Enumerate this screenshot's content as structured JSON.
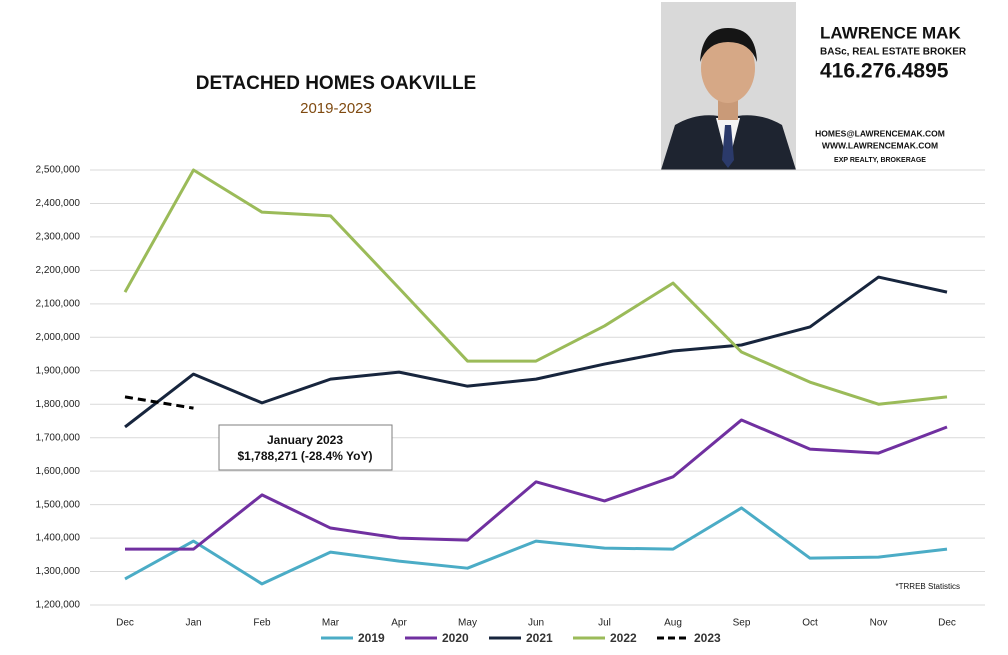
{
  "header": {
    "name": "LAWRENCE MAK",
    "credentials": "BASc, REAL ESTATE BROKER",
    "phone": "416.276.4895",
    "email": "HOMES@LAWRENCEMAK.COM",
    "website": "WWW.LAWRENCEMAK.COM",
    "brokerage": "EXP REALTY, BROKERAGE"
  },
  "chart_data": {
    "type": "line",
    "title": "DETACHED HOMES OAKVILLE",
    "subtitle": "2019-2023",
    "categories": [
      "Dec",
      "Jan",
      "Feb",
      "Mar",
      "Apr",
      "May",
      "Jun",
      "Jul",
      "Aug",
      "Sep",
      "Oct",
      "Nov",
      "Dec"
    ],
    "series": [
      {
        "name": "2019",
        "color": "#4bacc6",
        "values": [
          1278000,
          1391000,
          1263000,
          1358000,
          1331000,
          1310000,
          1391000,
          1370000,
          1367000,
          1490000,
          1340000,
          1343000,
          1367000
        ]
      },
      {
        "name": "2020",
        "color": "#7030a0",
        "values": [
          1367000,
          1367000,
          1529000,
          1430000,
          1400000,
          1394000,
          1568000,
          1511000,
          1583000,
          1753000,
          1666000,
          1654000,
          1732000
        ]
      },
      {
        "name": "2021",
        "color": "#17253d",
        "values": [
          1732000,
          1890000,
          1804000,
          1875000,
          1896000,
          1854000,
          1875000,
          1920000,
          1959000,
          1977000,
          2031000,
          2180000,
          2135000
        ]
      },
      {
        "name": "2022",
        "color": "#9bbb59",
        "values": [
          2135000,
          2500000,
          2374000,
          2363000,
          2147000,
          1929000,
          1929000,
          2034000,
          2162000,
          1956000,
          1866000,
          1800000,
          1822000
        ]
      },
      {
        "name": "2023",
        "color": "#000000",
        "dashed": true,
        "values": [
          1822000,
          1788271,
          null,
          null,
          null,
          null,
          null,
          null,
          null,
          null,
          null,
          null,
          null
        ]
      }
    ],
    "ylim": [
      1200000,
      2500000
    ],
    "yticks": [
      {
        "value": 1200000,
        "label": "1,200,000"
      },
      {
        "value": 1300000,
        "label": "1,300,000"
      },
      {
        "value": 1400000,
        "label": "1,400,000"
      },
      {
        "value": 1500000,
        "label": "1,500,000"
      },
      {
        "value": 1600000,
        "label": "1,600,000"
      },
      {
        "value": 1700000,
        "label": "1,700,000"
      },
      {
        "value": 1800000,
        "label": "1,800,000"
      },
      {
        "value": 1900000,
        "label": "1,900,000"
      },
      {
        "value": 2000000,
        "label": "2,000,000"
      },
      {
        "value": 2100000,
        "label": "2,100,000"
      },
      {
        "value": 2200000,
        "label": "2,200,000"
      },
      {
        "value": 2300000,
        "label": "2,300,000"
      },
      {
        "value": 2400000,
        "label": "2,400,000"
      },
      {
        "value": 2500000,
        "label": "2,500,000"
      }
    ],
    "grid": true,
    "annotation": {
      "title": "January 2023",
      "text": "$1,788,271  (-28.4%  YoY)"
    },
    "note": "*TRREB Statistics"
  }
}
